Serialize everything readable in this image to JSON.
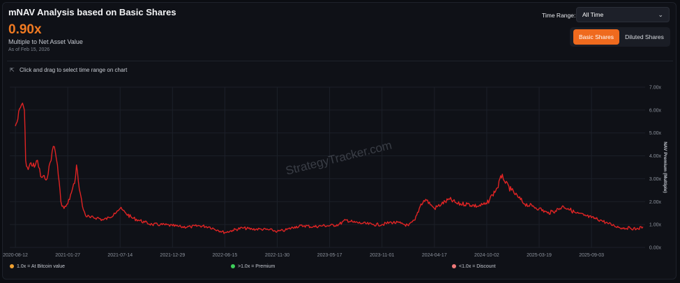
{
  "header": {
    "title": "mNAV Analysis based on Basic Shares",
    "value": "0.90x",
    "subtitle": "Multiple to Net Asset Value",
    "as_of": "As of Feb 15, 2026"
  },
  "controls": {
    "time_range_label": "Time Range:",
    "time_range_value": "All Time",
    "basic_shares_label": "Basic Shares",
    "diluted_shares_label": "Diluted Shares"
  },
  "hint": "Click and drag to select time range on chart",
  "watermark": "StrategyTracker.com",
  "legend": [
    {
      "label": "1.0x = At Bitcoin value",
      "color": "#f0a030"
    },
    {
      "label": ">1.0x = Premium",
      "color": "#3ecf5a"
    },
    {
      "label": "<1.0x = Discount",
      "color": "#f07a7a"
    }
  ],
  "colors": {
    "line": "#e02424",
    "accent": "#ef6a1e"
  },
  "chart_data": {
    "type": "line",
    "title": "",
    "xlabel": "",
    "ylabel": "NAV Premium (Multiple)",
    "ylim": [
      0,
      7
    ],
    "y_ticks": [
      "0.00x",
      "1.00x",
      "2.00x",
      "3.00x",
      "4.00x",
      "5.00x",
      "6.00x",
      "7.00x"
    ],
    "x_tick_labels": [
      "2020-08-12",
      "2021-01-27",
      "2021-07-14",
      "2021-12-29",
      "2022-06-15",
      "2022-11-30",
      "2023-05-17",
      "2023-11-01",
      "2024-04-17",
      "2024-10-02",
      "2025-03-19",
      "2025-09-03"
    ],
    "grid": true,
    "series": [
      {
        "points": [
          [
            "2020-08-12",
            5.3
          ],
          [
            "2020-08-20",
            5.6
          ],
          [
            "2020-08-28",
            6.1
          ],
          [
            "2020-09-04",
            6.3
          ],
          [
            "2020-09-10",
            6.0
          ],
          [
            "2020-09-14",
            3.8
          ],
          [
            "2020-09-22",
            3.4
          ],
          [
            "2020-10-01",
            3.7
          ],
          [
            "2020-10-12",
            3.5
          ],
          [
            "2020-10-22",
            3.8
          ],
          [
            "2020-11-01",
            3.1
          ],
          [
            "2020-11-15",
            3.0
          ],
          [
            "2020-11-25",
            3.2
          ],
          [
            "2020-12-08",
            4.2
          ],
          [
            "2020-12-15",
            4.4
          ],
          [
            "2020-12-25",
            3.6
          ],
          [
            "2021-01-05",
            2.0
          ],
          [
            "2021-01-15",
            1.7
          ],
          [
            "2021-01-27",
            1.9
          ],
          [
            "2021-02-08",
            2.4
          ],
          [
            "2021-02-18",
            2.8
          ],
          [
            "2021-02-24",
            3.6
          ],
          [
            "2021-03-02",
            2.9
          ],
          [
            "2021-03-15",
            1.8
          ],
          [
            "2021-03-25",
            1.4
          ],
          [
            "2021-04-10",
            1.3
          ],
          [
            "2021-05-01",
            1.3
          ],
          [
            "2021-05-20",
            1.2
          ],
          [
            "2021-06-10",
            1.3
          ],
          [
            "2021-06-25",
            1.5
          ],
          [
            "2021-07-05",
            1.6
          ],
          [
            "2021-07-14",
            1.7
          ],
          [
            "2021-08-01",
            1.5
          ],
          [
            "2021-08-20",
            1.3
          ],
          [
            "2021-09-10",
            1.2
          ],
          [
            "2021-10-01",
            1.1
          ],
          [
            "2021-10-25",
            1.0
          ],
          [
            "2021-11-20",
            1.0
          ],
          [
            "2021-12-29",
            0.95
          ],
          [
            "2022-01-25",
            0.9
          ],
          [
            "2022-02-25",
            0.9
          ],
          [
            "2022-03-25",
            0.95
          ],
          [
            "2022-04-25",
            0.9
          ],
          [
            "2022-05-25",
            0.75
          ],
          [
            "2022-06-15",
            0.65
          ],
          [
            "2022-07-10",
            0.75
          ],
          [
            "2022-08-10",
            0.85
          ],
          [
            "2022-09-10",
            0.8
          ],
          [
            "2022-10-10",
            0.8
          ],
          [
            "2022-11-15",
            0.75
          ],
          [
            "2022-11-30",
            0.7
          ],
          [
            "2022-12-25",
            0.75
          ],
          [
            "2023-01-25",
            0.9
          ],
          [
            "2023-02-25",
            0.95
          ],
          [
            "2023-03-25",
            0.9
          ],
          [
            "2023-04-25",
            0.95
          ],
          [
            "2023-05-17",
            0.95
          ],
          [
            "2023-06-15",
            1.0
          ],
          [
            "2023-07-10",
            1.2
          ],
          [
            "2023-08-01",
            1.1
          ],
          [
            "2023-09-01",
            1.05
          ],
          [
            "2023-10-01",
            1.0
          ],
          [
            "2023-11-01",
            1.0
          ],
          [
            "2023-12-01",
            1.1
          ],
          [
            "2024-01-01",
            1.05
          ],
          [
            "2024-01-25",
            0.95
          ],
          [
            "2024-02-15",
            1.2
          ],
          [
            "2024-03-05",
            1.9
          ],
          [
            "2024-03-20",
            2.1
          ],
          [
            "2024-04-10",
            1.8
          ],
          [
            "2024-04-17",
            1.7
          ],
          [
            "2024-05-10",
            1.9
          ],
          [
            "2024-06-05",
            2.1
          ],
          [
            "2024-07-01",
            1.9
          ],
          [
            "2024-08-01",
            1.9
          ],
          [
            "2024-09-01",
            1.8
          ],
          [
            "2024-10-02",
            1.9
          ],
          [
            "2024-10-20",
            2.3
          ],
          [
            "2024-11-05",
            2.6
          ],
          [
            "2024-11-21",
            3.2
          ],
          [
            "2024-12-01",
            2.8
          ],
          [
            "2024-12-20",
            2.5
          ],
          [
            "2025-01-10",
            2.2
          ],
          [
            "2025-02-01",
            1.9
          ],
          [
            "2025-02-25",
            1.8
          ],
          [
            "2025-03-19",
            1.7
          ],
          [
            "2025-04-15",
            1.5
          ],
          [
            "2025-05-10",
            1.6
          ],
          [
            "2025-06-05",
            1.8
          ],
          [
            "2025-06-20",
            1.7
          ],
          [
            "2025-07-15",
            1.5
          ],
          [
            "2025-08-10",
            1.4
          ],
          [
            "2025-09-03",
            1.3
          ],
          [
            "2025-10-01",
            1.2
          ],
          [
            "2025-10-25",
            1.05
          ],
          [
            "2025-11-15",
            0.95
          ],
          [
            "2025-12-10",
            0.85
          ],
          [
            "2026-01-05",
            0.85
          ],
          [
            "2026-01-25",
            0.8
          ],
          [
            "2026-02-15",
            0.9
          ]
        ]
      }
    ]
  }
}
